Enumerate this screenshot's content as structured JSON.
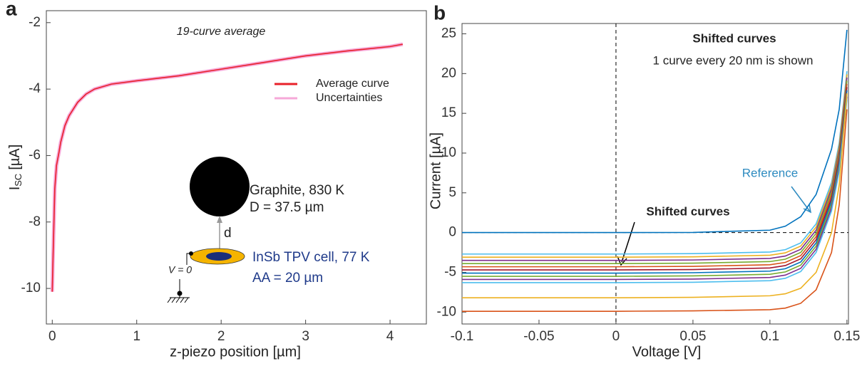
{
  "chart_data": [
    {
      "type": "line",
      "panel_label": "a",
      "annotation": "19-curve average",
      "xlabel": "z-piezo position [µm]",
      "ylabel": {
        "main": "I",
        "sub": "SC",
        "unit": "[µA]"
      },
      "xlim": [
        -0.07,
        4.43
      ],
      "ylim": [
        -11.07,
        -1.64
      ],
      "xticks": [
        0,
        1,
        2,
        3,
        4
      ],
      "yticks": [
        -2,
        -4,
        -6,
        -8,
        -10
      ],
      "x": [
        0,
        0.01,
        0.02,
        0.03,
        0.05,
        0.08,
        0.1,
        0.15,
        0.2,
        0.3,
        0.4,
        0.5,
        0.7,
        1,
        1.5,
        2,
        2.5,
        3,
        3.5,
        4,
        4.15
      ],
      "series": [
        {
          "name": "Average curve",
          "color": "#e8202a",
          "values": [
            -10.1,
            -9,
            -8,
            -7,
            -6.3,
            -5.9,
            -5.6,
            -5.1,
            -4.8,
            -4.4,
            -4.15,
            -4.0,
            -3.85,
            -3.75,
            -3.6,
            -3.4,
            -3.2,
            -3.0,
            -2.85,
            -2.72,
            -2.65
          ]
        }
      ],
      "band": {
        "name": "Uncertainties",
        "color": "#f6a8d8"
      },
      "inset": {
        "source": "Graphite, 830 K",
        "diameter": "D = 37.5 µm",
        "gap": "d",
        "cell": "InSb TPV cell, 77 K",
        "area": "AA = 20 µm",
        "bias": "V = 0"
      }
    },
    {
      "type": "line",
      "panel_label": "b",
      "annotations": [
        "Shifted curves",
        "1 curve every 20 nm is shown",
        "Shifted curves"
      ],
      "xlabel": "Voltage [V]",
      "ylabel": "Current [µA]",
      "xlim": [
        -0.1,
        0.151
      ],
      "ylim": [
        -11.5,
        26.3
      ],
      "xticks": [
        -0.1,
        -0.05,
        0,
        0.05,
        0.1,
        0.15
      ],
      "yticks": [
        -10,
        -5,
        0,
        5,
        10,
        15,
        20,
        25
      ],
      "x": [
        -0.1,
        -0.05,
        0,
        0.05,
        0.1,
        0.11,
        0.12,
        0.13,
        0.14,
        0.145,
        0.15
      ],
      "series": [
        {
          "name": "Reference",
          "color": "#0072bd",
          "values": [
            0,
            0,
            0,
            0.02,
            0.3,
            0.8,
            2,
            4.8,
            10.5,
            15.5,
            25.5
          ]
        },
        {
          "color": "#d95319",
          "values": [
            -9.9,
            -9.9,
            -9.9,
            -9.85,
            -9.7,
            -9.5,
            -8.9,
            -7.2,
            -2.5,
            3.5,
            15.5
          ]
        },
        {
          "color": "#edb120",
          "values": [
            -8.2,
            -8.2,
            -8.2,
            -8.15,
            -7.95,
            -7.7,
            -7,
            -5,
            0,
            6,
            17.5
          ]
        },
        {
          "color": "#4dbeee",
          "values": [
            -6.3,
            -6.3,
            -6.3,
            -6.25,
            -6.05,
            -5.75,
            -4.9,
            -2.5,
            2.7,
            7.7,
            16.7
          ]
        },
        {
          "color": "#7e2f8e",
          "values": [
            -5.9,
            -5.9,
            -5.9,
            -5.85,
            -5.65,
            -5.35,
            -4.5,
            -2.1,
            3.1,
            8.1,
            17.1
          ]
        },
        {
          "color": "#77ac30",
          "values": [
            -5.5,
            -5.5,
            -5.5,
            -5.45,
            -5.25,
            -4.95,
            -4.1,
            -1.7,
            3.5,
            8.5,
            17.5
          ]
        },
        {
          "color": "#0072bd",
          "values": [
            -5.1,
            -5.1,
            -5.1,
            -5.05,
            -4.85,
            -4.55,
            -3.7,
            -1.3,
            3.9,
            8.9,
            17.9
          ]
        },
        {
          "color": "#a2142f",
          "values": [
            -4.7,
            -4.7,
            -4.7,
            -4.65,
            -4.45,
            -4.15,
            -3.3,
            -0.9,
            4.3,
            9.3,
            18.3
          ]
        },
        {
          "color": "#d95319",
          "values": [
            -4.3,
            -4.3,
            -4.3,
            -4.25,
            -4.05,
            -3.75,
            -2.9,
            -0.5,
            4.7,
            9.7,
            18.7
          ]
        },
        {
          "color": "#77ac30",
          "values": [
            -3.9,
            -3.9,
            -3.9,
            -3.85,
            -3.65,
            -3.35,
            -2.5,
            -0.1,
            5.1,
            10.1,
            19.1
          ]
        },
        {
          "color": "#7e2f8e",
          "values": [
            -3.5,
            -3.5,
            -3.5,
            -3.45,
            -3.25,
            -2.95,
            -2.1,
            0.3,
            5.5,
            10.5,
            19.5
          ]
        },
        {
          "color": "#edb120",
          "values": [
            -3.1,
            -3.1,
            -3.1,
            -3.05,
            -2.85,
            -2.55,
            -1.7,
            0.7,
            5.9,
            10.9,
            19.9
          ]
        },
        {
          "color": "#4dbeee",
          "values": [
            -2.7,
            -2.7,
            -2.7,
            -2.65,
            -2.45,
            -2.15,
            -1.3,
            1.1,
            6.3,
            11.3,
            20.3
          ]
        }
      ]
    }
  ]
}
